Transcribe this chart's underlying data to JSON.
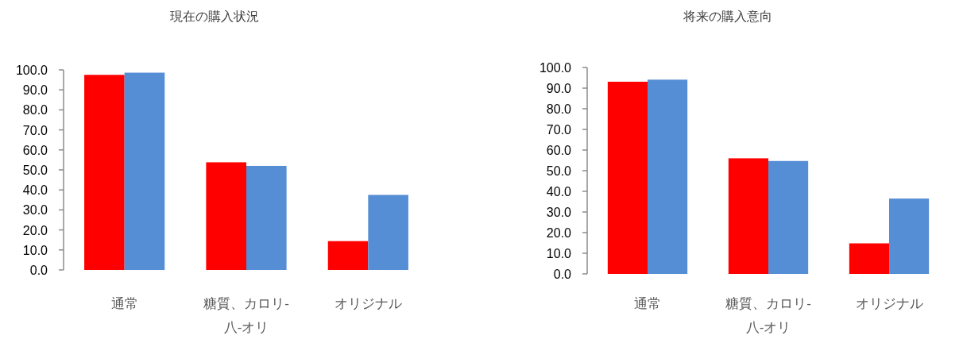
{
  "chart_data": [
    {
      "type": "bar",
      "title": "現在の購入状況",
      "categories": [
        "通常",
        "糖質、カロリ-八-オリ",
        "オリジナル"
      ],
      "series": [
        {
          "color": "#ff0000",
          "values": [
            97.5,
            53.8,
            14.4
          ]
        },
        {
          "color": "#558ed5",
          "values": [
            98.6,
            52.0,
            37.5
          ]
        }
      ],
      "ylim": [
        0,
        100
      ],
      "yticks": [
        {
          "value": 0,
          "label": "0.0"
        },
        {
          "value": 10,
          "label": "10.0"
        },
        {
          "value": 20,
          "label": "20.0"
        },
        {
          "value": 30,
          "label": "30.0"
        },
        {
          "value": 40,
          "label": "40.0"
        },
        {
          "value": 50,
          "label": "50.0"
        },
        {
          "value": 60,
          "label": "60.0"
        },
        {
          "value": 70,
          "label": "70.0"
        },
        {
          "value": 80,
          "label": "80.0"
        },
        {
          "value": 90,
          "label": "90.0"
        },
        {
          "value": 100,
          "label": "100.0"
        }
      ],
      "grid": false
    },
    {
      "type": "bar",
      "title": "将来の購入意向",
      "categories": [
        "通常",
        "糖質、カロリ-八-オリ",
        "オリジナル"
      ],
      "series": [
        {
          "color": "#ff0000",
          "values": [
            93.1,
            56.0,
            14.8
          ]
        },
        {
          "color": "#558ed5",
          "values": [
            94.1,
            54.7,
            36.5
          ]
        }
      ],
      "ylim": [
        0,
        100
      ],
      "yticks": [
        {
          "value": 0,
          "label": "0.0"
        },
        {
          "value": 10,
          "label": "10.0"
        },
        {
          "value": 20,
          "label": "20.0"
        },
        {
          "value": 30,
          "label": "30.0"
        },
        {
          "value": 40,
          "label": "40.0"
        },
        {
          "value": 50,
          "label": "50.0"
        },
        {
          "value": 60,
          "label": "60.0"
        },
        {
          "value": 70,
          "label": "70.0"
        },
        {
          "value": 80,
          "label": "80.0"
        },
        {
          "value": 90,
          "label": "90.0"
        },
        {
          "value": 100,
          "label": "100.0"
        }
      ],
      "grid": false
    }
  ]
}
